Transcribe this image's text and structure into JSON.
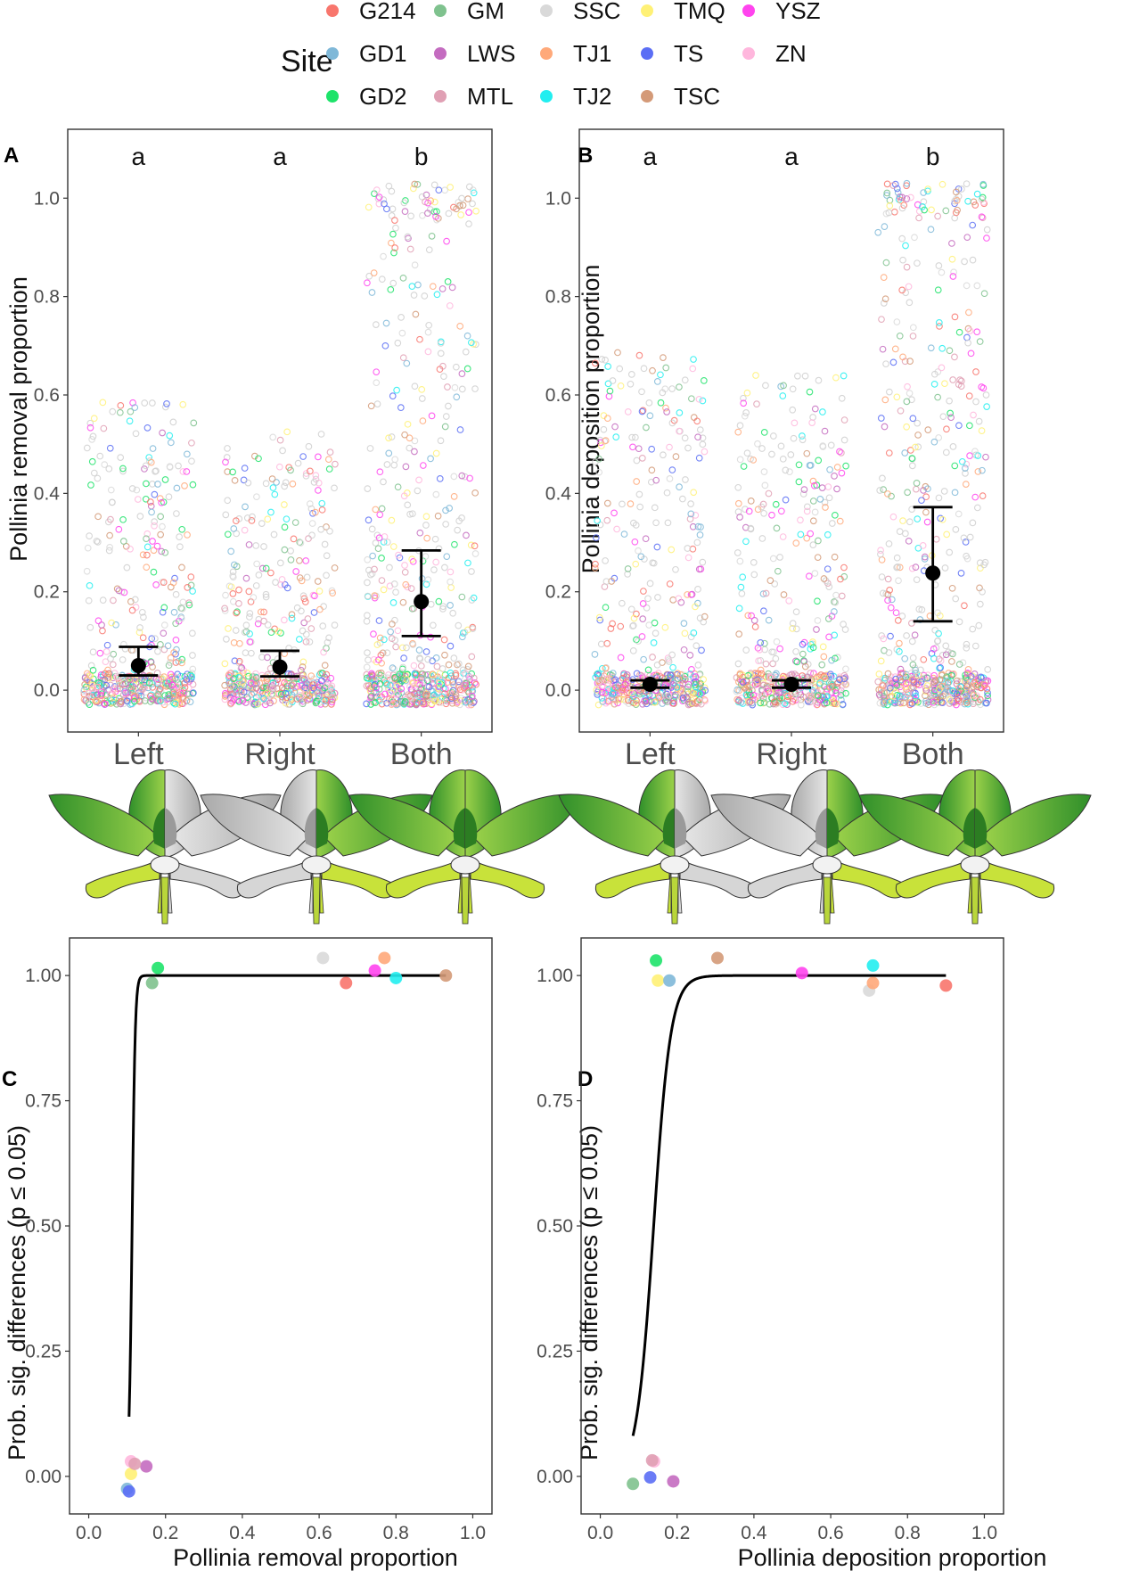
{
  "legend": {
    "title": "Site",
    "entries": [
      {
        "name": "G214",
        "color": "#F8766D"
      },
      {
        "name": "GM",
        "color": "#7FC28E"
      },
      {
        "name": "SSC",
        "color": "#D9D9D9"
      },
      {
        "name": "TMQ",
        "color": "#FFF176"
      },
      {
        "name": "YSZ",
        "color": "#FF44EE"
      },
      {
        "name": "GD1",
        "color": "#7FB8D8"
      },
      {
        "name": "LWS",
        "color": "#C46CC0"
      },
      {
        "name": "TJ1",
        "color": "#FFA97A"
      },
      {
        "name": "TS",
        "color": "#5B6EF5"
      },
      {
        "name": "ZN",
        "color": "#FFB7DD"
      },
      {
        "name": "GD2",
        "color": "#1EE36A"
      },
      {
        "name": "MTL",
        "color": "#E0A0B4"
      },
      {
        "name": "TJ2",
        "color": "#22EEF0"
      },
      {
        "name": "TSC",
        "color": "#D49A78"
      }
    ]
  },
  "chart_data": [
    {
      "panel": "A",
      "type": "scatter",
      "ylabel": "Pollinia removal proportion",
      "ylim": [
        -0.085,
        1.14
      ],
      "yticks": [
        "0.0",
        "0.2",
        "0.4",
        "0.6",
        "0.8",
        "1.0"
      ],
      "categories": [
        "Left",
        "Right",
        "Both"
      ],
      "letters": [
        "a",
        "a",
        "b"
      ],
      "means": [
        {
          "category": "Left",
          "mean": 0.05,
          "lower": 0.03,
          "upper": 0.088
        },
        {
          "category": "Right",
          "mean": 0.047,
          "lower": 0.028,
          "upper": 0.08
        },
        {
          "category": "Both",
          "mean": 0.18,
          "lower": 0.11,
          "upper": 0.284
        }
      ],
      "raw_spread": [
        {
          "category": "Left",
          "max": 0.585,
          "dense_below": 0.03
        },
        {
          "category": "Right",
          "max": 0.53,
          "dense_below": 0.03
        },
        {
          "category": "Both",
          "max": 1.03,
          "dense_below": 0.03
        }
      ]
    },
    {
      "panel": "B",
      "type": "scatter",
      "ylabel": "Pollinia deposition proportion",
      "ylim": [
        -0.085,
        1.14
      ],
      "yticks": [
        "0.0",
        "0.2",
        "0.4",
        "0.6",
        "0.8",
        "1.0"
      ],
      "categories": [
        "Left",
        "Right",
        "Both"
      ],
      "letters": [
        "a",
        "a",
        "b"
      ],
      "means": [
        {
          "category": "Left",
          "mean": 0.012,
          "lower": 0.005,
          "upper": 0.02
        },
        {
          "category": "Right",
          "mean": 0.012,
          "lower": 0.005,
          "upper": 0.02
        },
        {
          "category": "Both",
          "mean": 0.238,
          "lower": 0.14,
          "upper": 0.372
        }
      ],
      "raw_spread": [
        {
          "category": "Left",
          "max": 0.69,
          "dense_below": 0.03
        },
        {
          "category": "Right",
          "max": 0.64,
          "dense_below": 0.03
        },
        {
          "category": "Both",
          "max": 1.03,
          "dense_below": 0.03
        }
      ]
    },
    {
      "panel": "C",
      "type": "scatter",
      "xlabel": "Pollinia removal proportion",
      "ylabel": "Prob. sig. differences (p ≤ 0.05)",
      "xlim": [
        -0.05,
        1.05
      ],
      "ylim": [
        -0.075,
        1.075
      ],
      "xticks": [
        "0.0",
        "0.2",
        "0.4",
        "0.6",
        "0.8",
        "1.0"
      ],
      "yticks": [
        "0.00",
        "0.25",
        "0.50",
        "0.75",
        "1.00"
      ],
      "points": [
        {
          "site": "G214",
          "x": 0.67,
          "y": 0.985
        },
        {
          "site": "GM",
          "x": 0.165,
          "y": 0.985
        },
        {
          "site": "SSC",
          "x": 0.61,
          "y": 1.035
        },
        {
          "site": "TMQ",
          "x": 0.11,
          "y": 0.005
        },
        {
          "site": "YSZ",
          "x": 0.745,
          "y": 1.01
        },
        {
          "site": "GD1",
          "x": 0.1,
          "y": -0.025
        },
        {
          "site": "LWS",
          "x": 0.15,
          "y": 0.02
        },
        {
          "site": "TJ1",
          "x": 0.77,
          "y": 1.035
        },
        {
          "site": "TS",
          "x": 0.105,
          "y": -0.03
        },
        {
          "site": "ZN",
          "x": 0.11,
          "y": 0.03
        },
        {
          "site": "GD2",
          "x": 0.18,
          "y": 1.015
        },
        {
          "site": "MTL",
          "x": 0.12,
          "y": 0.025
        },
        {
          "site": "TJ2",
          "x": 0.8,
          "y": 0.995
        },
        {
          "site": "TSC",
          "x": 0.93,
          "y": 1.0
        }
      ],
      "curve": {
        "from": 0.105,
        "to": 0.93,
        "midpoint": 0.113,
        "slope": 250
      }
    },
    {
      "panel": "D",
      "type": "scatter",
      "xlabel": "Pollinia deposition proportion",
      "ylabel": "Prob. sig. differences (p ≤ 0.05)",
      "xlim": [
        -0.05,
        1.05
      ],
      "ylim": [
        -0.075,
        1.075
      ],
      "xticks": [
        "0.0",
        "0.2",
        "0.4",
        "0.6",
        "0.8",
        "1.0"
      ],
      "yticks": [
        "0.00",
        "0.25",
        "0.50",
        "0.75",
        "1.00"
      ],
      "points": [
        {
          "site": "G214",
          "x": 0.9,
          "y": 0.98
        },
        {
          "site": "GM",
          "x": 0.085,
          "y": -0.015
        },
        {
          "site": "SSC",
          "x": 0.7,
          "y": 0.97
        },
        {
          "site": "TMQ",
          "x": 0.15,
          "y": 0.99
        },
        {
          "site": "YSZ",
          "x": 0.525,
          "y": 1.005
        },
        {
          "site": "GD1",
          "x": 0.18,
          "y": 0.99
        },
        {
          "site": "LWS",
          "x": 0.19,
          "y": -0.01
        },
        {
          "site": "TJ1",
          "x": 0.71,
          "y": 0.985
        },
        {
          "site": "TS",
          "x": 0.13,
          "y": -0.002
        },
        {
          "site": "ZN",
          "x": 0.14,
          "y": 0.03
        },
        {
          "site": "GD2",
          "x": 0.145,
          "y": 1.03
        },
        {
          "site": "MTL",
          "x": 0.135,
          "y": 0.032
        },
        {
          "site": "TJ2",
          "x": 0.71,
          "y": 1.02
        },
        {
          "site": "TSC",
          "x": 0.305,
          "y": 1.035
        }
      ],
      "curve": {
        "from": 0.085,
        "to": 0.9,
        "midpoint": 0.139,
        "slope": 45
      }
    }
  ]
}
